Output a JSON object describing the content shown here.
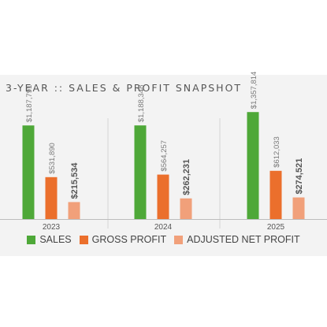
{
  "chart_data": {
    "type": "bar",
    "title": "3-YEAR :: SALES & PROFIT SNAPSHOT",
    "categories": [
      "2023",
      "2024",
      "2025"
    ],
    "series": [
      {
        "name": "SALES",
        "color": "#4ea838",
        "values": [
          1187791,
          1188348,
          1357814
        ],
        "labels": [
          "$1,187,791",
          "$1,188,348",
          "$1,357,814"
        ]
      },
      {
        "name": "GROSS PROFIT",
        "color": "#eb6f2c",
        "values": [
          531890,
          564257,
          612033
        ],
        "labels": [
          "$531,890",
          "$564,257",
          "$612,033"
        ]
      },
      {
        "name": "ADJUSTED NET PROFIT",
        "color": "#f1a07a",
        "values": [
          215534,
          262231,
          274521
        ],
        "labels": [
          "$215,534",
          "$262,231",
          "$274,521"
        ]
      }
    ],
    "ylim": [
      0,
      2300000
    ],
    "grid": false,
    "legend_position": "bottom"
  }
}
